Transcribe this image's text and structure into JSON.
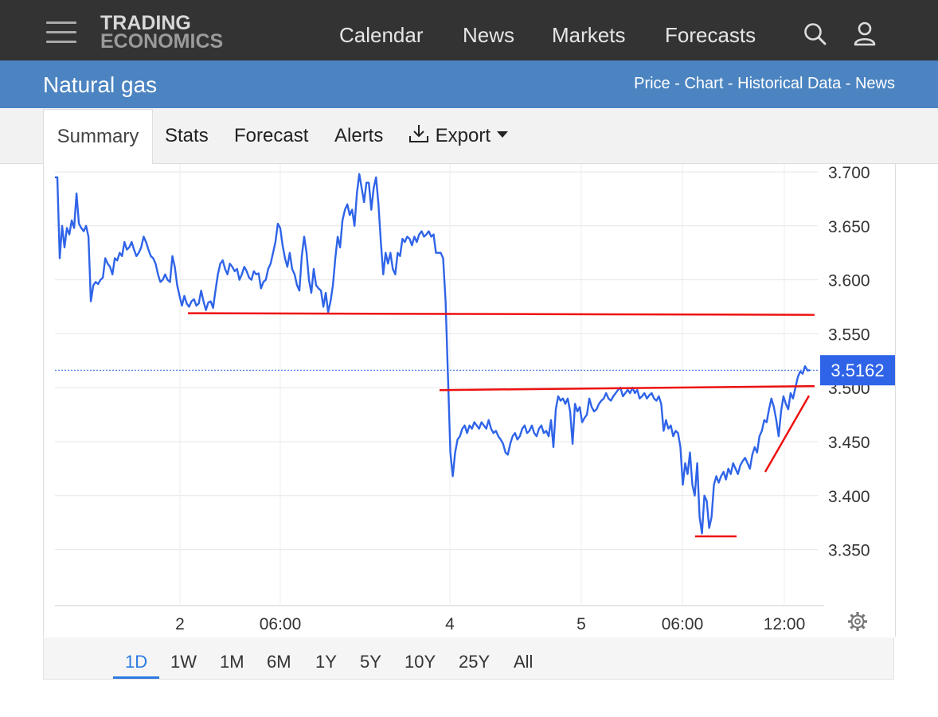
{
  "header": {
    "logo_line1": "TRADING",
    "logo_line2": "ECONOMICS",
    "nav": [
      "Calendar",
      "News",
      "Markets",
      "Forecasts"
    ],
    "icons": [
      "menu-icon",
      "search-icon",
      "user-icon"
    ]
  },
  "subheader": {
    "title": "Natural gas",
    "links": [
      "Price",
      "Chart",
      "Historical Data",
      "News"
    ],
    "separator": " - "
  },
  "tabs": {
    "summary": "Summary",
    "stats": "Stats",
    "forecast": "Forecast",
    "alerts": "Alerts",
    "export": "Export"
  },
  "chart_data": {
    "type": "line",
    "y_ticks": [
      "3.700",
      "3.650",
      "3.600",
      "3.550",
      "3.500",
      "3.450",
      "3.400",
      "3.350"
    ],
    "ylim": [
      3.3,
      3.71
    ],
    "x_ticks": [
      "2",
      "06:00",
      "4",
      "5",
      "06:00",
      "12:00"
    ],
    "current_value": 3.5162,
    "current_label": "3.5162",
    "line_color": "#2f64e8",
    "trendline_color": "#ee1111",
    "grid": true,
    "annotations": [
      {
        "type": "hline",
        "y": 3.569
      },
      {
        "type": "hline",
        "y": 3.5
      },
      {
        "type": "hline",
        "y": 3.363
      },
      {
        "type": "trendline",
        "y_start": 3.422,
        "y_end": 3.497
      }
    ],
    "series": [
      {
        "values": [
          3.695,
          3.695,
          3.62,
          3.65,
          3.63,
          3.648,
          3.642,
          3.655,
          3.648,
          3.68,
          3.652,
          3.648,
          3.645,
          3.65,
          3.64,
          3.58,
          3.595,
          3.598,
          3.596,
          3.6,
          3.602,
          3.62,
          3.615,
          3.612,
          3.605,
          3.62,
          3.618,
          3.625,
          3.622,
          3.635,
          3.628,
          3.63,
          3.635,
          3.628,
          3.622,
          3.625,
          3.63,
          3.64,
          3.635,
          3.628,
          3.622,
          3.62,
          3.615,
          3.605,
          3.598,
          3.6,
          3.605,
          3.6,
          3.598,
          3.622,
          3.612,
          3.595,
          3.585,
          3.576,
          3.585,
          3.578,
          3.575,
          3.58,
          3.582,
          3.576,
          3.578,
          3.59,
          3.58,
          3.572,
          3.579,
          3.58,
          3.574,
          3.59,
          3.605,
          3.615,
          3.618,
          3.61,
          3.605,
          3.615,
          3.612,
          3.608,
          3.61,
          3.6,
          3.605,
          3.612,
          3.608,
          3.602,
          3.6,
          3.608,
          3.605,
          3.606,
          3.592,
          3.598,
          3.6,
          3.61,
          3.615,
          3.625,
          3.635,
          3.652,
          3.648,
          3.632,
          3.62,
          3.612,
          3.625,
          3.61,
          3.605,
          3.595,
          3.59,
          3.622,
          3.64,
          3.625,
          3.6,
          3.588,
          3.61,
          3.595,
          3.592,
          3.59,
          3.575,
          3.588,
          3.57,
          3.58,
          3.595,
          3.62,
          3.64,
          3.63,
          3.655,
          3.665,
          3.67,
          3.66,
          3.665,
          3.65,
          3.68,
          3.698,
          3.685,
          3.672,
          3.69,
          3.69,
          3.665,
          3.685,
          3.695,
          3.67,
          3.635,
          3.605,
          3.625,
          3.615,
          3.625,
          3.61,
          3.605,
          3.625,
          3.622,
          3.638,
          3.635,
          3.64,
          3.638,
          3.632,
          3.64,
          3.635,
          3.642,
          3.645,
          3.64,
          3.642,
          3.645,
          3.64,
          3.642,
          3.625,
          3.625,
          3.625,
          3.62,
          3.58,
          3.51,
          3.44,
          3.418,
          3.44,
          3.452,
          3.455,
          3.462,
          3.465,
          3.458,
          3.465,
          3.462,
          3.468,
          3.465,
          3.462,
          3.468,
          3.465,
          3.462,
          3.47,
          3.462,
          3.458,
          3.46,
          3.455,
          3.452,
          3.448,
          3.44,
          3.438,
          3.448,
          3.455,
          3.458,
          3.452,
          3.455,
          3.462,
          3.465,
          3.458,
          3.46,
          3.465,
          3.458,
          3.455,
          3.462,
          3.465,
          3.458,
          3.46,
          3.455,
          3.47,
          3.445,
          3.48,
          3.492,
          3.488,
          3.49,
          3.485,
          3.49,
          3.478,
          3.448,
          3.485,
          3.478,
          3.482,
          3.468,
          3.472,
          3.475,
          3.49,
          3.482,
          3.478,
          3.48,
          3.485,
          3.488,
          3.49,
          3.495,
          3.49,
          3.488,
          3.492,
          3.495,
          3.498,
          3.5,
          3.492,
          3.495,
          3.498,
          3.495,
          3.5,
          3.495,
          3.498,
          3.49,
          3.492,
          3.495,
          3.49,
          3.493,
          3.495,
          3.49,
          3.488,
          3.492,
          3.485,
          3.46,
          3.47,
          3.462,
          3.465,
          3.455,
          3.46,
          3.458,
          3.445,
          3.41,
          3.43,
          3.42,
          3.44,
          3.41,
          3.4,
          3.43,
          3.38,
          3.365,
          3.4,
          3.395,
          3.37,
          3.38,
          3.41,
          3.418,
          3.412,
          3.418,
          3.422,
          3.415,
          3.425,
          3.42,
          3.43,
          3.425,
          3.42,
          3.428,
          3.432,
          3.435,
          3.43,
          3.425,
          3.438,
          3.445,
          3.44,
          3.455,
          3.46,
          3.47,
          3.468,
          3.48,
          3.49,
          3.482,
          3.47,
          3.455,
          3.478,
          3.492,
          3.485,
          3.48,
          3.495,
          3.49,
          3.5,
          3.51,
          3.515,
          3.513,
          3.52,
          3.516,
          3.5162
        ]
      }
    ]
  },
  "chart_settings_icon": "gear-icon",
  "ranges": [
    "1D",
    "1W",
    "1M",
    "6M",
    "1Y",
    "5Y",
    "10Y",
    "25Y",
    "All"
  ],
  "active_range": "1D"
}
